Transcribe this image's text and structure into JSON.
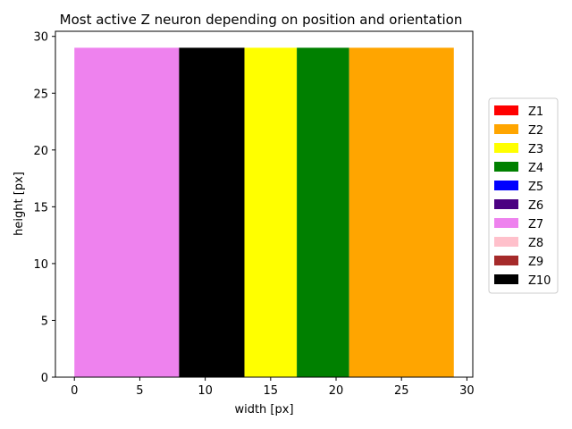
{
  "chart_data": {
    "type": "bar",
    "title": "Most active Z neuron depending on position and orientation",
    "xlabel": "width [px]",
    "ylabel": "height [px]",
    "xlim": [
      -1.45,
      30.45
    ],
    "ylim": [
      0,
      30.45
    ],
    "xticks": [
      0,
      5,
      10,
      15,
      20,
      25,
      30
    ],
    "yticks": [
      0,
      5,
      10,
      15,
      20,
      25,
      30
    ],
    "grid": false,
    "legend_position": "right",
    "regions": [
      {
        "neuron": "Z7",
        "x_start": 0,
        "x_end": 8,
        "y_start": 0,
        "y_end": 29
      },
      {
        "neuron": "Z10",
        "x_start": 8,
        "x_end": 13,
        "y_start": 0,
        "y_end": 29
      },
      {
        "neuron": "Z3",
        "x_start": 13,
        "x_end": 17,
        "y_start": 0,
        "y_end": 29
      },
      {
        "neuron": "Z4",
        "x_start": 17,
        "x_end": 21,
        "y_start": 0,
        "y_end": 29
      },
      {
        "neuron": "Z2",
        "x_start": 21,
        "x_end": 29,
        "y_start": 0,
        "y_end": 29
      }
    ],
    "legend": [
      {
        "label": "Z1",
        "color": "#ff0000"
      },
      {
        "label": "Z2",
        "color": "#ffa500"
      },
      {
        "label": "Z3",
        "color": "#ffff00"
      },
      {
        "label": "Z4",
        "color": "#008000"
      },
      {
        "label": "Z5",
        "color": "#0000ff"
      },
      {
        "label": "Z6",
        "color": "#4b0082"
      },
      {
        "label": "Z7",
        "color": "#ee82ee"
      },
      {
        "label": "Z8",
        "color": "#ffc0cb"
      },
      {
        "label": "Z9",
        "color": "#a52a2a"
      },
      {
        "label": "Z10",
        "color": "#000000"
      }
    ]
  }
}
